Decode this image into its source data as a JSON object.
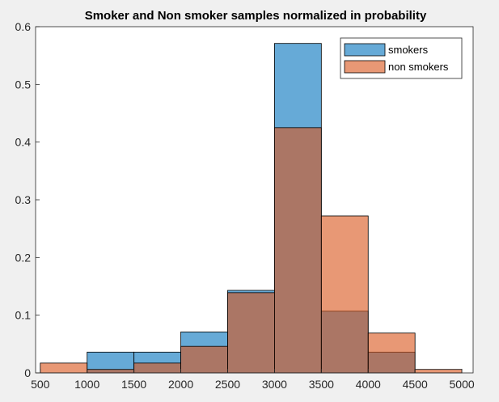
{
  "chart_data": {
    "type": "bar",
    "subtype": "overlapping-histogram",
    "title": "Smoker and Non smoker samples normalized in probability",
    "xlabel": "",
    "ylabel": "",
    "xlim": [
      450,
      5120
    ],
    "ylim": [
      0,
      0.6
    ],
    "x_ticks": [
      "500",
      "1000",
      "1500",
      "2000",
      "2500",
      "3000",
      "3500",
      "4000",
      "4500",
      "5000"
    ],
    "y_ticks": [
      "0",
      "0.1",
      "0.2",
      "0.3",
      "0.4",
      "0.5",
      "0.6"
    ],
    "grid": false,
    "legend_position": "top-right",
    "bin_edges": [
      500,
      1000,
      1500,
      2000,
      2500,
      3000,
      3500,
      4000,
      4500,
      5000
    ],
    "series": [
      {
        "name": "smokers",
        "color": "#0072BD",
        "values": [
          0.0,
          0.036,
          0.036,
          0.071,
          0.143,
          0.571,
          0.107,
          0.036,
          0.0
        ]
      },
      {
        "name": "non smokers",
        "color": "#D95319",
        "values": [
          0.017,
          0.006,
          0.017,
          0.046,
          0.139,
          0.425,
          0.272,
          0.069,
          0.006
        ]
      }
    ]
  }
}
